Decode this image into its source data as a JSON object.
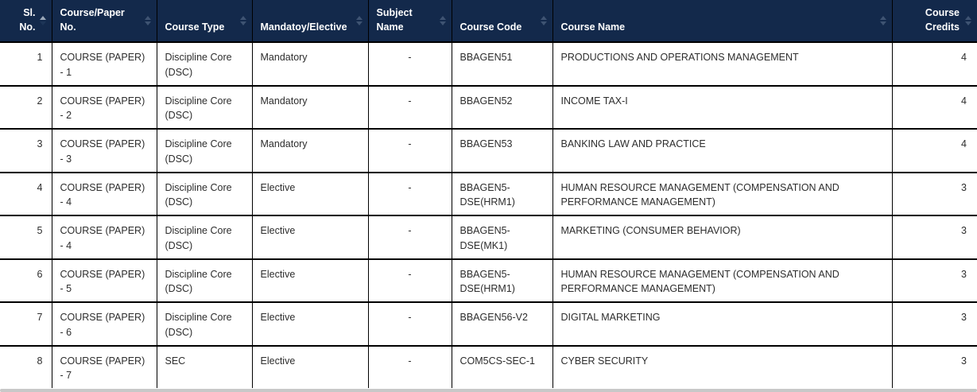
{
  "table": {
    "columns": [
      {
        "key": "sl_no",
        "label": "Sl. No.",
        "sort": "asc",
        "sort_icon": "sort-asc-icon"
      },
      {
        "key": "course_paper_no",
        "label": "Course/Paper No.",
        "sort": "none",
        "sort_icon": "sort-both-icon"
      },
      {
        "key": "course_type",
        "label": "Course Type",
        "sort": "none",
        "sort_icon": "sort-both-icon"
      },
      {
        "key": "mandatory_elective",
        "label": "Mandatoy/Elective",
        "sort": "none",
        "sort_icon": "sort-both-icon"
      },
      {
        "key": "subject_name",
        "label": "Subject Name",
        "sort": "none",
        "sort_icon": "sort-both-icon"
      },
      {
        "key": "course_code",
        "label": "Course Code",
        "sort": "none",
        "sort_icon": "sort-both-icon"
      },
      {
        "key": "course_name",
        "label": "Course Name",
        "sort": "none",
        "sort_icon": "sort-both-icon"
      },
      {
        "key": "course_credits",
        "label": "Course Credits",
        "sort": "none",
        "sort_icon": "sort-both-icon"
      }
    ],
    "rows": [
      [
        "1",
        "COURSE (PAPER) - 1",
        "Discipline Core (DSC)",
        "Mandatory",
        "-",
        "BBAGEN51",
        "PRODUCTIONS AND OPERATIONS MANAGEMENT",
        "4"
      ],
      [
        "2",
        "COURSE (PAPER) - 2",
        "Discipline Core (DSC)",
        "Mandatory",
        "-",
        "BBAGEN52",
        "INCOME TAX-I",
        "4"
      ],
      [
        "3",
        "COURSE (PAPER) - 3",
        "Discipline Core (DSC)",
        "Mandatory",
        "-",
        "BBAGEN53",
        "BANKING LAW AND PRACTICE",
        "4"
      ],
      [
        "4",
        "COURSE (PAPER) - 4",
        "Discipline Core (DSC)",
        "Elective",
        "-",
        "BBAGEN5-DSE(HRM1)",
        "HUMAN RESOURCE MANAGEMENT (COMPENSATION AND PERFORMANCE MANAGEMENT)",
        "3"
      ],
      [
        "5",
        "COURSE (PAPER) - 4",
        "Discipline Core (DSC)",
        "Elective",
        "-",
        "BBAGEN5-DSE(MK1)",
        "MARKETING (CONSUMER BEHAVIOR)",
        "3"
      ],
      [
        "6",
        "COURSE (PAPER) - 5",
        "Discipline Core (DSC)",
        "Elective",
        "-",
        "BBAGEN5-DSE(HRM1)",
        "HUMAN RESOURCE MANAGEMENT (COMPENSATION AND PERFORMANCE MANAGEMENT)",
        "3"
      ],
      [
        "7",
        "COURSE (PAPER) - 6",
        "Discipline Core (DSC)",
        "Elective",
        "-",
        "BBAGEN56-V2",
        "DIGITAL MARKETING",
        "3"
      ],
      [
        "8",
        "COURSE (PAPER) - 7",
        "SEC",
        "Elective",
        "-",
        "COM5CS-SEC-1",
        "CYBER SECURITY",
        "3"
      ]
    ]
  },
  "colors": {
    "header_bg": "#13294b",
    "header_text": "#ffffff",
    "body_text": "#2d2d2d",
    "border": "#000000",
    "sort_idle": "#3e5372",
    "sort_active": "#9aa7b8",
    "sort_inactive": "#1d3557",
    "scrollbar": "#c8c8c8"
  }
}
